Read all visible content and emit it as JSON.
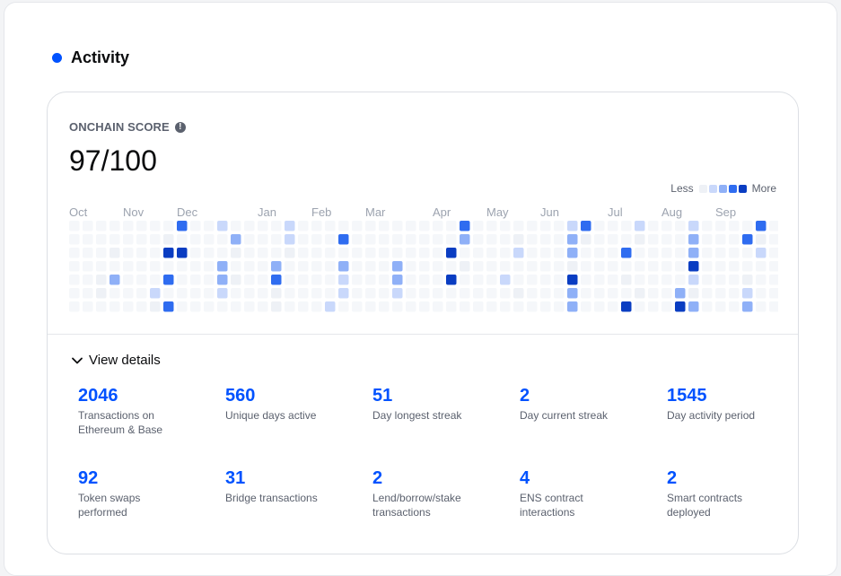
{
  "section": {
    "title": "Activity",
    "accent": "#0052ff"
  },
  "score": {
    "label": "ONCHAIN SCORE",
    "info_glyph": "!",
    "value": "97/100"
  },
  "legend": {
    "less": "Less",
    "more": "More",
    "colors": [
      "#eef1f6",
      "#c9d8fb",
      "#8fb0f7",
      "#2f6cf0",
      "#0a3dc2"
    ]
  },
  "heatmap": {
    "months": [
      "Oct",
      "Nov",
      "Dec",
      "Jan",
      "Feb",
      "Mar",
      "Apr",
      "May",
      "Jun",
      "Jul",
      "Aug",
      "Sep"
    ],
    "month_week_index": [
      0,
      4,
      8,
      14,
      18,
      22,
      27,
      31,
      35,
      40,
      44,
      48
    ],
    "weeks": 53,
    "days": 7,
    "cells": [
      [
        8,
        0,
        4
      ],
      [
        11,
        0,
        2
      ],
      [
        16,
        0,
        2
      ],
      [
        29,
        0,
        4
      ],
      [
        37,
        0,
        2
      ],
      [
        38,
        0,
        4
      ],
      [
        42,
        0,
        2
      ],
      [
        46,
        0,
        2
      ],
      [
        51,
        0,
        4
      ],
      [
        7,
        1,
        1
      ],
      [
        12,
        1,
        3
      ],
      [
        16,
        1,
        2
      ],
      [
        20,
        1,
        4
      ],
      [
        29,
        1,
        3
      ],
      [
        33,
        1,
        1
      ],
      [
        37,
        1,
        3
      ],
      [
        38,
        1,
        1
      ],
      [
        42,
        1,
        1
      ],
      [
        46,
        1,
        3
      ],
      [
        50,
        1,
        4
      ],
      [
        51,
        1,
        1
      ],
      [
        3,
        2,
        1
      ],
      [
        7,
        2,
        5
      ],
      [
        8,
        2,
        5
      ],
      [
        12,
        2,
        1
      ],
      [
        16,
        2,
        1
      ],
      [
        28,
        2,
        5
      ],
      [
        33,
        2,
        2
      ],
      [
        37,
        2,
        3
      ],
      [
        41,
        2,
        4
      ],
      [
        46,
        2,
        3
      ],
      [
        51,
        2,
        2
      ],
      [
        11,
        3,
        3
      ],
      [
        15,
        3,
        3
      ],
      [
        20,
        3,
        3
      ],
      [
        24,
        3,
        3
      ],
      [
        29,
        3,
        1
      ],
      [
        37,
        3,
        1
      ],
      [
        46,
        3,
        5
      ],
      [
        2,
        4,
        1
      ],
      [
        3,
        4,
        3
      ],
      [
        7,
        4,
        4
      ],
      [
        11,
        4,
        3
      ],
      [
        12,
        4,
        1
      ],
      [
        15,
        4,
        4
      ],
      [
        20,
        4,
        2
      ],
      [
        24,
        4,
        3
      ],
      [
        28,
        4,
        5
      ],
      [
        32,
        4,
        2
      ],
      [
        37,
        4,
        5
      ],
      [
        41,
        4,
        1
      ],
      [
        46,
        4,
        2
      ],
      [
        50,
        4,
        1
      ],
      [
        2,
        5,
        1
      ],
      [
        6,
        5,
        2
      ],
      [
        11,
        5,
        2
      ],
      [
        15,
        5,
        1
      ],
      [
        20,
        5,
        2
      ],
      [
        24,
        5,
        2
      ],
      [
        33,
        5,
        1
      ],
      [
        37,
        5,
        3
      ],
      [
        42,
        5,
        1
      ],
      [
        45,
        5,
        3
      ],
      [
        46,
        5,
        1
      ],
      [
        50,
        5,
        2
      ],
      [
        6,
        6,
        1
      ],
      [
        7,
        6,
        4
      ],
      [
        15,
        6,
        1
      ],
      [
        19,
        6,
        2
      ],
      [
        37,
        6,
        3
      ],
      [
        41,
        6,
        5
      ],
      [
        45,
        6,
        5
      ],
      [
        46,
        6,
        3
      ],
      [
        50,
        6,
        3
      ]
    ]
  },
  "details": {
    "label": "View details"
  },
  "stats": [
    {
      "value": "2046",
      "label": [
        "Transactions on",
        "Ethereum & Base"
      ]
    },
    {
      "value": "560",
      "label": [
        "Unique days active"
      ]
    },
    {
      "value": "51",
      "label": [
        "Day longest streak"
      ]
    },
    {
      "value": "2",
      "label": [
        "Day current streak"
      ]
    },
    {
      "value": "1545",
      "label": [
        "Day activity period"
      ]
    },
    {
      "value": "92",
      "label": [
        "Token swaps",
        "performed"
      ]
    },
    {
      "value": "31",
      "label": [
        "Bridge transactions"
      ]
    },
    {
      "value": "2",
      "label": [
        "Lend/borrow/stake",
        "transactions"
      ]
    },
    {
      "value": "4",
      "label": [
        "ENS contract",
        "interactions"
      ]
    },
    {
      "value": "2",
      "label": [
        "Smart contracts",
        "deployed"
      ]
    }
  ]
}
